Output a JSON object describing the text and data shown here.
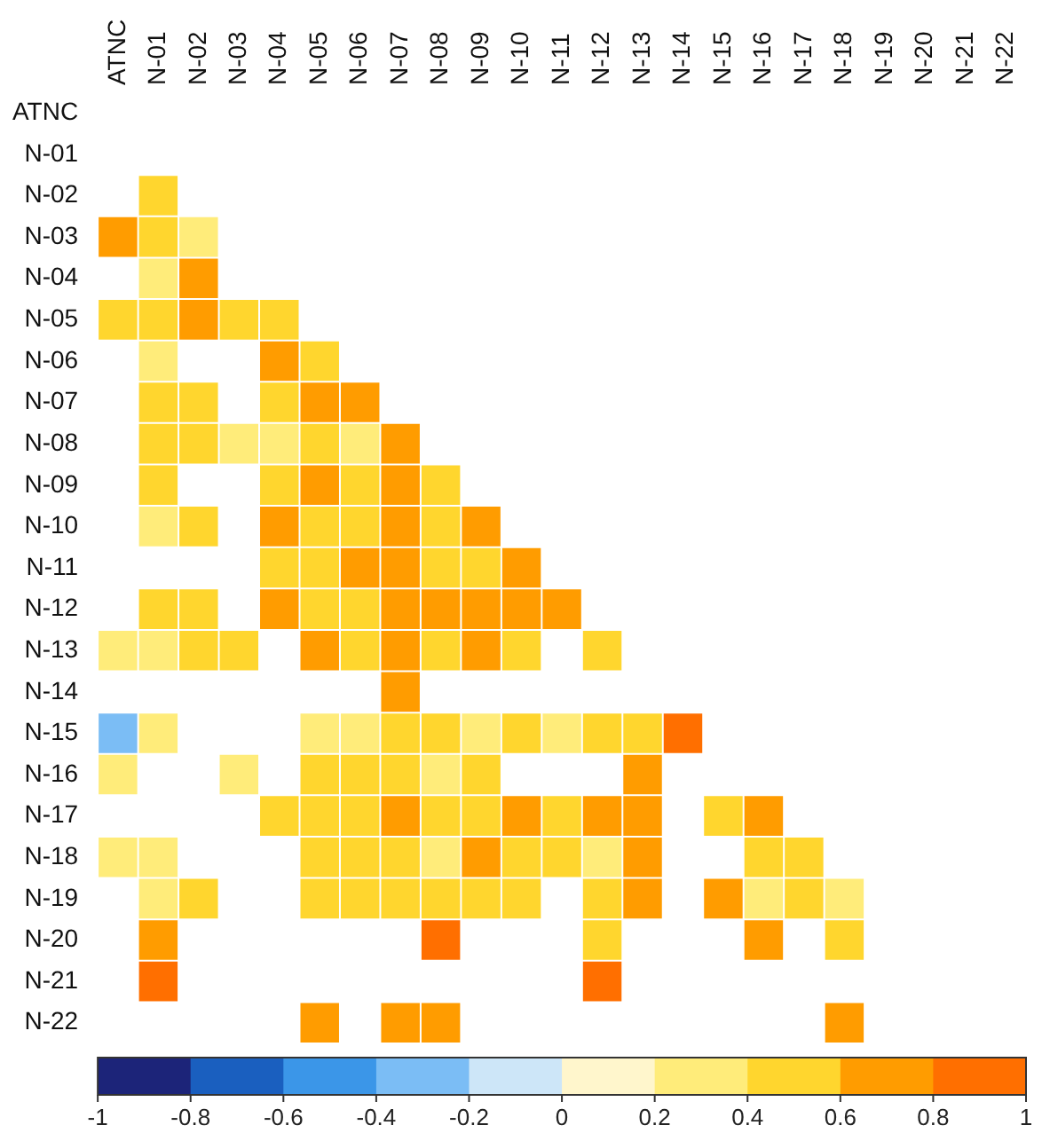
{
  "chart_data": {
    "type": "heatmap",
    "categories": [
      "ATNC",
      "N-01",
      "N-02",
      "N-03",
      "N-04",
      "N-05",
      "N-06",
      "N-07",
      "N-08",
      "N-09",
      "N-10",
      "N-11",
      "N-12",
      "N-13",
      "N-14",
      "N-15",
      "N-16",
      "N-17",
      "N-18",
      "N-19",
      "N-20",
      "N-21",
      "N-22"
    ],
    "y_categories": [
      "ATNC",
      "N-01",
      "N-02",
      "N-03",
      "N-04",
      "N-05",
      "N-06",
      "N-07",
      "N-08",
      "N-09",
      "N-10",
      "N-11",
      "N-12",
      "N-13",
      "N-14",
      "N-15",
      "N-16",
      "N-17",
      "N-18",
      "N-19",
      "N-20",
      "N-21",
      "N-22"
    ],
    "cells": [
      [
        null,
        null,
        null,
        null,
        null,
        null,
        null,
        null,
        null,
        null,
        null,
        null,
        null,
        null,
        null,
        null,
        null,
        null,
        null,
        null,
        null,
        null,
        null
      ],
      [
        null,
        null,
        null,
        null,
        null,
        null,
        null,
        null,
        null,
        null,
        null,
        null,
        null,
        null,
        null,
        null,
        null,
        null,
        null,
        null,
        null,
        null,
        null
      ],
      [
        null,
        0.5,
        null,
        null,
        null,
        null,
        null,
        null,
        null,
        null,
        null,
        null,
        null,
        null,
        null,
        null,
        null,
        null,
        null,
        null,
        null,
        null,
        null
      ],
      [
        0.7,
        0.5,
        0.3,
        null,
        null,
        null,
        null,
        null,
        null,
        null,
        null,
        null,
        null,
        null,
        null,
        null,
        null,
        null,
        null,
        null,
        null,
        null,
        null
      ],
      [
        null,
        0.3,
        0.7,
        null,
        null,
        null,
        null,
        null,
        null,
        null,
        null,
        null,
        null,
        null,
        null,
        null,
        null,
        null,
        null,
        null,
        null,
        null,
        null
      ],
      [
        0.5,
        0.5,
        0.7,
        0.5,
        0.5,
        null,
        null,
        null,
        null,
        null,
        null,
        null,
        null,
        null,
        null,
        null,
        null,
        null,
        null,
        null,
        null,
        null,
        null
      ],
      [
        null,
        0.3,
        null,
        null,
        0.7,
        0.5,
        null,
        null,
        null,
        null,
        null,
        null,
        null,
        null,
        null,
        null,
        null,
        null,
        null,
        null,
        null,
        null,
        null
      ],
      [
        null,
        0.5,
        0.5,
        null,
        0.5,
        0.7,
        0.7,
        null,
        null,
        null,
        null,
        null,
        null,
        null,
        null,
        null,
        null,
        null,
        null,
        null,
        null,
        null,
        null
      ],
      [
        null,
        0.5,
        0.5,
        0.3,
        0.3,
        0.5,
        0.3,
        0.7,
        null,
        null,
        null,
        null,
        null,
        null,
        null,
        null,
        null,
        null,
        null,
        null,
        null,
        null,
        null
      ],
      [
        null,
        0.5,
        null,
        null,
        0.5,
        0.7,
        0.5,
        0.7,
        0.5,
        null,
        null,
        null,
        null,
        null,
        null,
        null,
        null,
        null,
        null,
        null,
        null,
        null,
        null
      ],
      [
        null,
        0.3,
        0.5,
        null,
        0.7,
        0.5,
        0.5,
        0.7,
        0.5,
        0.7,
        null,
        null,
        null,
        null,
        null,
        null,
        null,
        null,
        null,
        null,
        null,
        null,
        null
      ],
      [
        null,
        null,
        null,
        null,
        0.5,
        0.5,
        0.7,
        0.7,
        0.5,
        0.5,
        0.7,
        null,
        null,
        null,
        null,
        null,
        null,
        null,
        null,
        null,
        null,
        null,
        null
      ],
      [
        null,
        0.5,
        0.5,
        null,
        0.7,
        0.5,
        0.5,
        0.7,
        0.7,
        0.7,
        0.7,
        0.7,
        null,
        null,
        null,
        null,
        null,
        null,
        null,
        null,
        null,
        null,
        null
      ],
      [
        0.3,
        0.3,
        0.5,
        0.5,
        null,
        0.7,
        0.5,
        0.7,
        0.5,
        0.7,
        0.5,
        null,
        0.5,
        null,
        null,
        null,
        null,
        null,
        null,
        null,
        null,
        null,
        null
      ],
      [
        null,
        null,
        null,
        null,
        null,
        null,
        null,
        0.7,
        null,
        null,
        null,
        null,
        null,
        null,
        null,
        null,
        null,
        null,
        null,
        null,
        null,
        null,
        null
      ],
      [
        -0.3,
        0.3,
        null,
        null,
        null,
        0.3,
        0.3,
        0.5,
        0.5,
        0.3,
        0.5,
        0.3,
        0.5,
        0.5,
        0.9,
        null,
        null,
        null,
        null,
        null,
        null,
        null,
        null
      ],
      [
        0.3,
        null,
        null,
        0.3,
        null,
        0.5,
        0.5,
        0.5,
        0.3,
        0.5,
        null,
        null,
        null,
        0.7,
        null,
        null,
        null,
        null,
        null,
        null,
        null,
        null,
        null
      ],
      [
        null,
        null,
        null,
        null,
        0.5,
        0.5,
        0.5,
        0.7,
        0.5,
        0.5,
        0.7,
        0.5,
        0.7,
        0.7,
        null,
        0.5,
        0.7,
        null,
        null,
        null,
        null,
        null,
        null
      ],
      [
        0.3,
        0.3,
        null,
        null,
        null,
        0.5,
        0.5,
        0.5,
        0.3,
        0.7,
        0.5,
        0.5,
        0.3,
        0.7,
        null,
        null,
        0.5,
        0.5,
        null,
        null,
        null,
        null,
        null
      ],
      [
        null,
        0.3,
        0.5,
        null,
        null,
        0.5,
        0.5,
        0.5,
        0.5,
        0.5,
        0.5,
        null,
        0.5,
        0.7,
        null,
        0.7,
        0.3,
        0.5,
        0.3,
        null,
        null,
        null,
        null
      ],
      [
        null,
        0.7,
        null,
        null,
        null,
        null,
        null,
        null,
        0.9,
        null,
        null,
        null,
        0.5,
        null,
        null,
        null,
        0.7,
        null,
        0.5,
        null,
        null,
        null,
        null
      ],
      [
        null,
        0.9,
        null,
        null,
        null,
        null,
        null,
        null,
        null,
        null,
        null,
        null,
        0.9,
        null,
        null,
        null,
        null,
        null,
        null,
        null,
        null,
        null,
        null
      ],
      [
        null,
        null,
        null,
        null,
        null,
        0.7,
        null,
        0.7,
        0.7,
        null,
        null,
        null,
        null,
        null,
        null,
        null,
        null,
        null,
        0.7,
        null,
        null,
        null,
        null
      ]
    ],
    "clim": [
      -1,
      1
    ],
    "cticks": [
      -1,
      -0.8,
      -0.6,
      -0.4,
      -0.2,
      0,
      0.2,
      0.4,
      0.6,
      0.8,
      1
    ]
  }
}
